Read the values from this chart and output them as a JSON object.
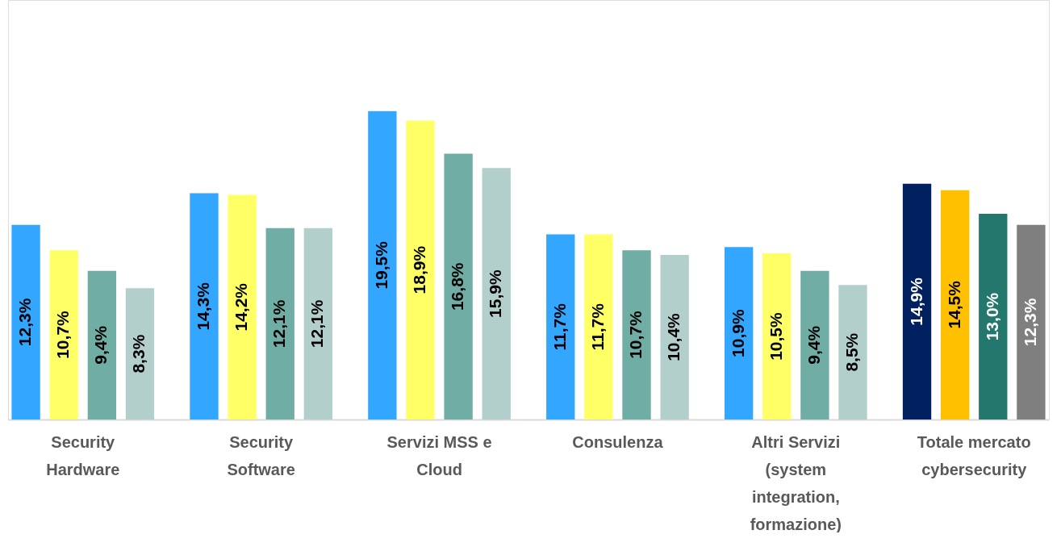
{
  "chart_data": {
    "type": "bar",
    "categories": [
      "Security Hardware",
      "Security Software",
      "Servizi MSS e Cloud",
      "Consulenza",
      "Altri Servizi (system integration, formazione)",
      "Totale mercato cybersecurity"
    ],
    "series": [
      {
        "colors": [
          "#33a6ff",
          "#33a6ff",
          "#33a6ff",
          "#33a6ff",
          "#33a6ff",
          "#002060"
        ],
        "values": [
          12.3,
          14.3,
          19.5,
          11.7,
          10.9,
          14.9
        ],
        "value_labels": [
          "12,3%",
          "14,3%",
          "19,5%",
          "11,7%",
          "10,9%",
          "14,9%"
        ]
      },
      {
        "colors": [
          "#ffff66",
          "#ffff66",
          "#ffff66",
          "#ffff66",
          "#ffff66",
          "#ffc000"
        ],
        "values": [
          10.7,
          14.2,
          18.9,
          11.7,
          10.5,
          14.5
        ],
        "value_labels": [
          "10,7%",
          "14,2%",
          "18,9%",
          "11,7%",
          "10,5%",
          "14,5%"
        ]
      },
      {
        "colors": [
          "#70ada5",
          "#70ada5",
          "#70ada5",
          "#70ada5",
          "#70ada5",
          "#23776d"
        ],
        "values": [
          9.4,
          12.1,
          16.8,
          10.7,
          9.4,
          13.0
        ],
        "value_labels": [
          "9,4%",
          "12,1%",
          "16,8%",
          "10,7%",
          "9,4%",
          "13,0%"
        ]
      },
      {
        "colors": [
          "#b3cfcc",
          "#b3cfcc",
          "#b3cfcc",
          "#b3cfcc",
          "#b3cfcc",
          "#7f7f7f"
        ],
        "values": [
          8.3,
          12.1,
          15.9,
          10.4,
          8.5,
          12.3
        ],
        "value_labels": [
          "8,3%",
          "12,1%",
          "15,9%",
          "10,4%",
          "8,5%",
          "12,3%"
        ]
      }
    ],
    "grid": false
  }
}
